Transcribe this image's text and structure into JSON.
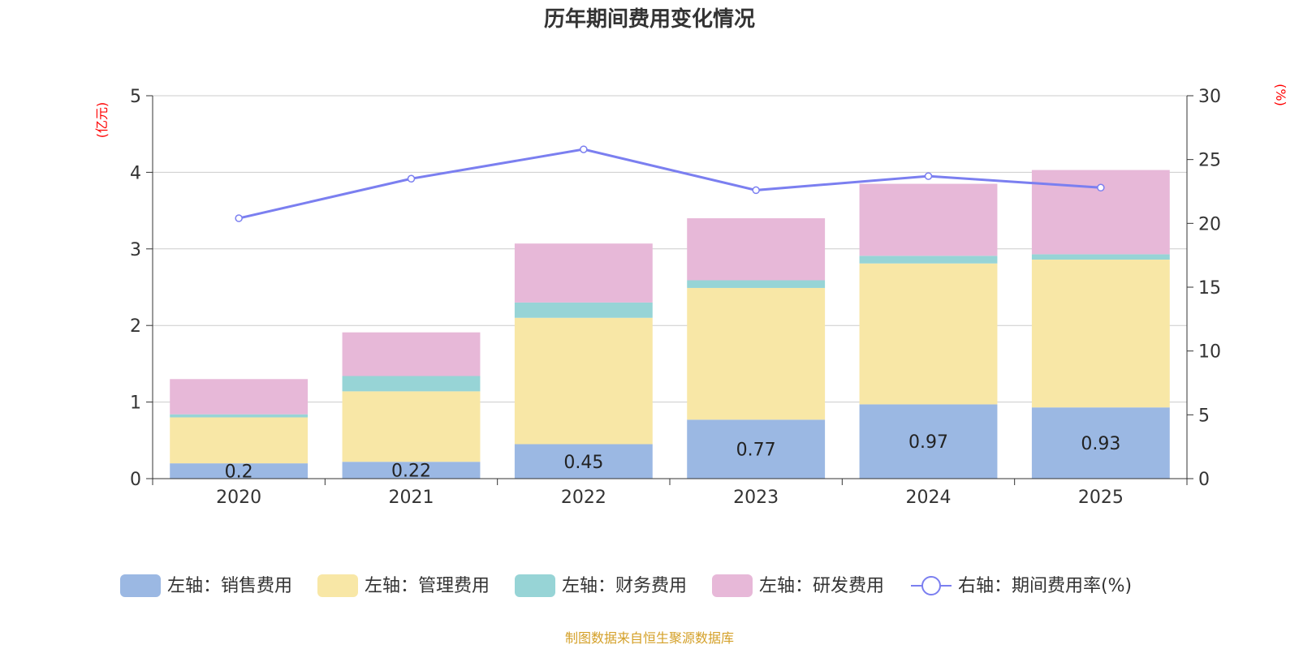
{
  "colors": {
    "sales": "#9bb8e3",
    "mgmt": "#f8e7a6",
    "fin": "#97d4d6",
    "rnd": "#e7b8d8",
    "line": "#7b7ff0",
    "unit": "#ff0000",
    "source": "#d4a028",
    "grid": "#cccccc",
    "axis": "#333333"
  },
  "chart_data": {
    "type": "bar",
    "stacked": true,
    "title": "历年期间费用变化情况",
    "categories": [
      "2020",
      "2021",
      "2022",
      "2023",
      "2024",
      "2025"
    ],
    "left_axis": {
      "unit": "(亿元)",
      "ylim": [
        0,
        5
      ],
      "ticks": [
        "0",
        "1",
        "2",
        "3",
        "4",
        "5"
      ]
    },
    "right_axis": {
      "unit": "(%)",
      "ylim": [
        0,
        30
      ],
      "ticks": [
        "0",
        "5",
        "10",
        "15",
        "20",
        "25",
        "30"
      ]
    },
    "series": [
      {
        "name": "左轴：销售费用",
        "key": "sales",
        "axis": "left",
        "type": "bar",
        "values": [
          0.2,
          0.22,
          0.45,
          0.77,
          0.97,
          0.93
        ],
        "labels": [
          "0.2",
          "0.22",
          "0.45",
          "0.77",
          "0.97",
          "0.93"
        ]
      },
      {
        "name": "左轴：管理费用",
        "key": "mgmt",
        "axis": "left",
        "type": "bar",
        "values": [
          0.6,
          0.92,
          1.65,
          1.72,
          1.84,
          1.93
        ]
      },
      {
        "name": "左轴：财务费用",
        "key": "fin",
        "axis": "left",
        "type": "bar",
        "values": [
          0.04,
          0.2,
          0.2,
          0.1,
          0.1,
          0.07
        ]
      },
      {
        "name": "左轴：研发费用",
        "key": "rnd",
        "axis": "left",
        "type": "bar",
        "values": [
          0.46,
          0.57,
          0.77,
          0.81,
          0.94,
          1.1
        ]
      },
      {
        "name": "右轴：期间费用率(%)",
        "key": "line",
        "axis": "right",
        "type": "line",
        "values": [
          20.4,
          23.5,
          25.8,
          22.6,
          23.7,
          22.8
        ]
      }
    ],
    "source": "制图数据来自恒生聚源数据库"
  }
}
